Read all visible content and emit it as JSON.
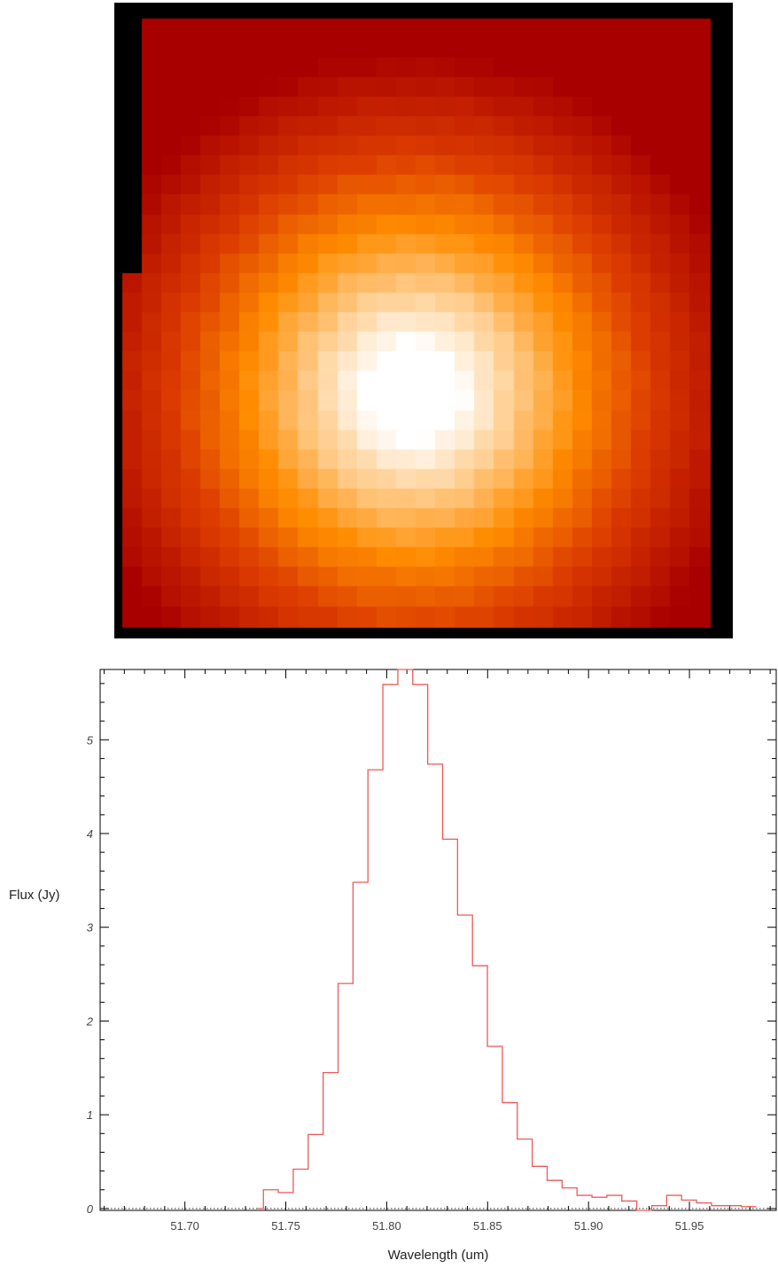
{
  "map": {
    "description_colormap": "heat",
    "colors": {
      "background": "#000000",
      "low": "#aa0000",
      "mid": "#ff8800",
      "high": "#ffffff"
    }
  },
  "chart_data": {
    "type": "line",
    "style": "step",
    "xlabel": "Wavelength (um)",
    "ylabel": "Flux (Jy)",
    "xlim": [
      51.658,
      51.993
    ],
    "ylim": [
      -0.02,
      5.75
    ],
    "xticks": [
      "51.70",
      "51.75",
      "51.80",
      "51.85",
      "51.90",
      "51.95"
    ],
    "yticks": [
      "0",
      "1",
      "2",
      "3",
      "4",
      "5"
    ],
    "grid": false,
    "baseline": 0,
    "line_color": "#ee5a5a",
    "series": [
      {
        "x": [
          51.7357,
          51.7389,
          51.7463,
          51.7537,
          51.7611,
          51.7685,
          51.7759,
          51.7833,
          51.7907,
          51.7981,
          51.8055,
          51.8129,
          51.8203,
          51.8277,
          51.8351,
          51.8425,
          51.8499,
          51.8573,
          51.8647,
          51.8721,
          51.8795,
          51.8869,
          51.8943,
          51.9017,
          51.9091,
          51.9165,
          51.9239,
          51.9313,
          51.9387,
          51.9461,
          51.9535,
          51.9609,
          51.9683,
          51.9757
        ],
        "y": [
          0.0,
          0.2,
          0.17,
          0.42,
          0.79,
          1.45,
          2.4,
          3.48,
          4.68,
          5.59,
          5.75,
          5.59,
          4.74,
          3.94,
          3.13,
          2.59,
          1.73,
          1.13,
          0.74,
          0.45,
          0.3,
          0.22,
          0.14,
          0.12,
          0.14,
          0.08,
          -0.02,
          0.03,
          0.14,
          0.09,
          0.06,
          0.03,
          0.03,
          0.02
        ]
      }
    ]
  }
}
